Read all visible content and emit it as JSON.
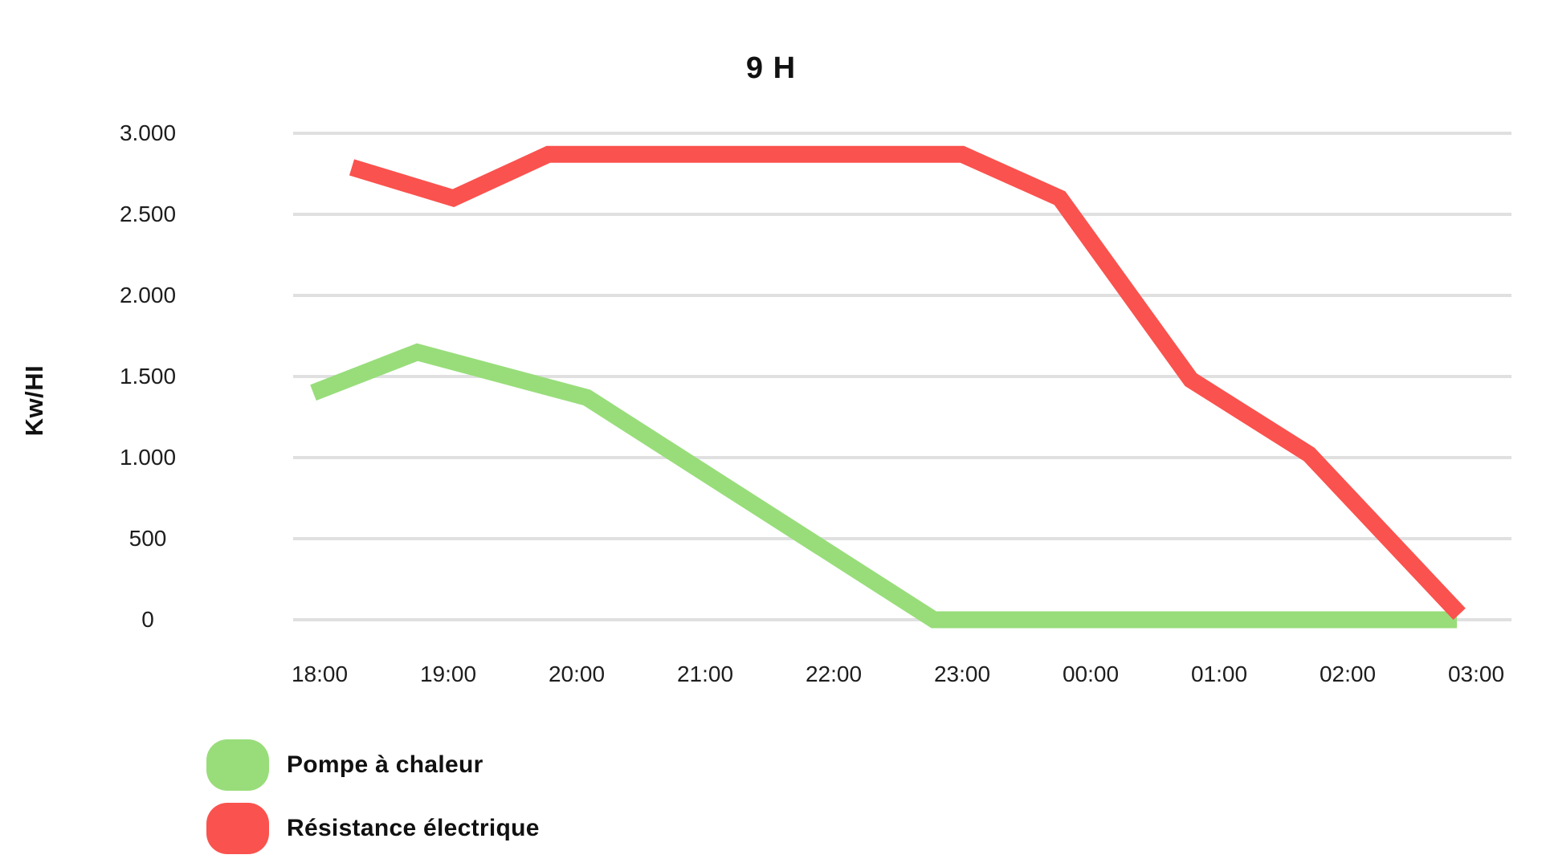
{
  "page": {
    "background_color": "#ffffff",
    "text_color": "#111111",
    "gridline_color": "#e0e0e0"
  },
  "chart_data": {
    "type": "line",
    "title": "9 H",
    "ylabel": "Kw/HI",
    "xlabel": "",
    "x_tick_labels": [
      "18:00",
      "19:00",
      "20:00",
      "21:00",
      "22:00",
      "23:00",
      "00:00",
      "01:00",
      "02:00",
      "03:00"
    ],
    "y_tick_labels": [
      "3.000",
      "2.500",
      "2.000",
      "1.500",
      "1.000",
      "500",
      "0"
    ],
    "y_tick_values": [
      3000,
      2500,
      2000,
      1500,
      1000,
      500,
      0
    ],
    "ylim": [
      0,
      3000
    ],
    "x_span_hours": 9,
    "grid": true,
    "legend_position": "bottom-left",
    "series": [
      {
        "name": "Pompe à chaleur",
        "color": "#98DD7A",
        "points": [
          {
            "t_hours_from_18h": -0.05,
            "value": 1400
          },
          {
            "t_hours_from_18h": 0.76,
            "value": 1650
          },
          {
            "t_hours_from_18h": 2.08,
            "value": 1370
          },
          {
            "t_hours_from_18h": 4.78,
            "value": 0
          },
          {
            "t_hours_from_18h": 8.85,
            "value": 0
          }
        ]
      },
      {
        "name": "Résistance électrique",
        "color": "#FA524E",
        "points": [
          {
            "t_hours_from_18h": 0.25,
            "value": 2790
          },
          {
            "t_hours_from_18h": 1.04,
            "value": 2600
          },
          {
            "t_hours_from_18h": 1.78,
            "value": 2870
          },
          {
            "t_hours_from_18h": 5.0,
            "value": 2870
          },
          {
            "t_hours_from_18h": 5.76,
            "value": 2600
          },
          {
            "t_hours_from_18h": 6.78,
            "value": 1480
          },
          {
            "t_hours_from_18h": 7.7,
            "value": 1020
          },
          {
            "t_hours_from_18h": 8.87,
            "value": 35
          }
        ]
      }
    ]
  }
}
